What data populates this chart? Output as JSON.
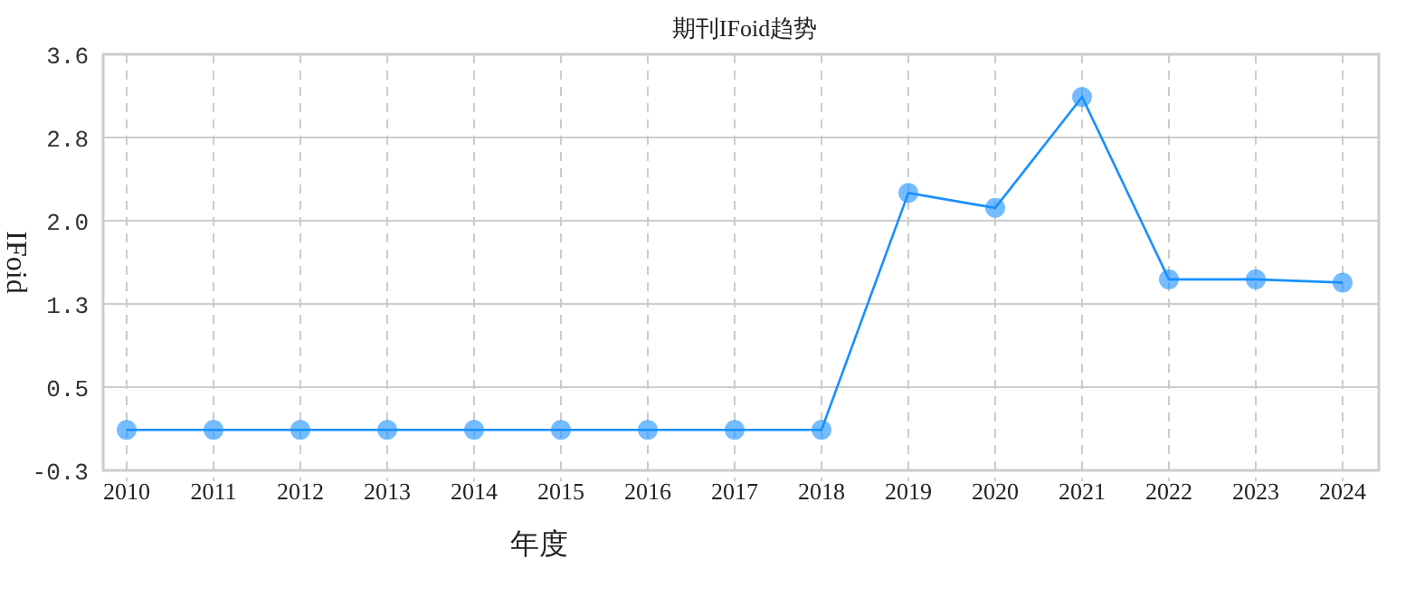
{
  "chart_data": {
    "type": "line",
    "title": "期刊IFoid趋势",
    "xlabel": "年度",
    "ylabel": "IFoid",
    "categories": [
      "2010",
      "2011",
      "2012",
      "2013",
      "2014",
      "2015",
      "2016",
      "2017",
      "2018",
      "2019",
      "2020",
      "2021",
      "2022",
      "2023",
      "2024"
    ],
    "series": [
      {
        "color": "#1890ff",
        "values": [
          0.08,
          0.08,
          0.08,
          0.08,
          0.08,
          0.08,
          0.08,
          0.08,
          0.08,
          2.3,
          2.16,
          3.2,
          1.49,
          1.49,
          1.46
        ]
      }
    ],
    "ylim": [
      -0.3,
      3.6
    ],
    "yticks": [
      {
        "value": -0.3,
        "label": "-0.3"
      },
      {
        "value": 0.48,
        "label": "0.5"
      },
      {
        "value": 1.26,
        "label": "1.3"
      },
      {
        "value": 2.04,
        "label": "2.0"
      },
      {
        "value": 2.82,
        "label": "2.8"
      },
      {
        "value": 3.6,
        "label": "3.6"
      }
    ],
    "grid": true,
    "marker": "circle",
    "line_style": "solid"
  }
}
